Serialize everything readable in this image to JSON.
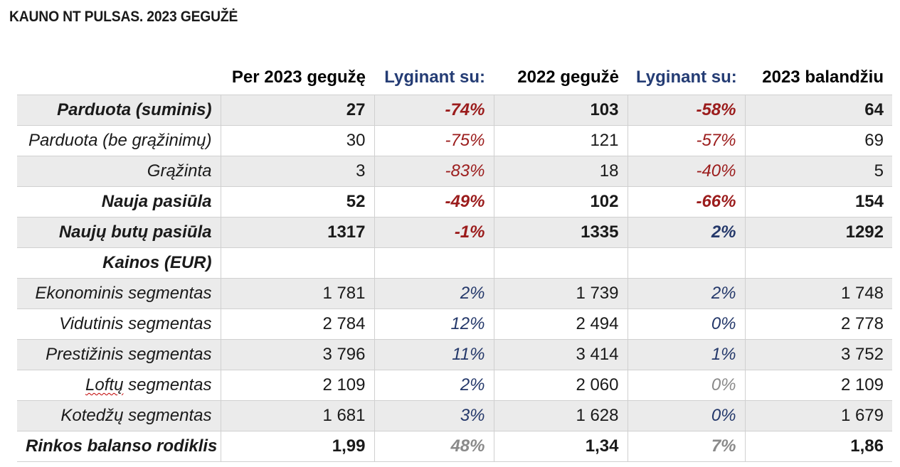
{
  "title": "KAUNO NT PULSAS. 2023 GEGUŽĖ",
  "header": {
    "label": "",
    "col1": "Per 2023 gegužę",
    "col2": "Lyginant su:",
    "col3": "2022 gegužė",
    "col4": "Lyginant su:",
    "col5": "2023 balandžiu"
  },
  "rows": [
    {
      "label": "Parduota (suminis)",
      "v1": "27",
      "p1": "-74%",
      "v2": "103",
      "p2": "-58%",
      "v3": "64"
    },
    {
      "label": "Parduota (be grąžinimų)",
      "v1": "30",
      "p1": "-75%",
      "v2": "121",
      "p2": "-57%",
      "v3": "69"
    },
    {
      "label": "Grąžinta",
      "v1": "3",
      "p1": "-83%",
      "v2": "18",
      "p2": "-40%",
      "v3": "5"
    },
    {
      "label": "Nauja pasiūla",
      "v1": "52",
      "p1": "-49%",
      "v2": "102",
      "p2": "-66%",
      "v3": "154"
    },
    {
      "label": "Naujų butų pasiūla",
      "v1": "1317",
      "p1": "-1%",
      "v2": "1335",
      "p2": "2%",
      "v3": "1292"
    },
    {
      "label": "Kainos (EUR)",
      "v1": "",
      "p1": "",
      "v2": "",
      "p2": "",
      "v3": ""
    },
    {
      "label": "Ekonominis segmentas",
      "v1": "1 781",
      "p1": "2%",
      "v2": "1 739",
      "p2": "2%",
      "v3": "1 748"
    },
    {
      "label": "Vidutinis segmentas",
      "v1": "2 784",
      "p1": "12%",
      "v2": "2 494",
      "p2": "0%",
      "v3": "2 778"
    },
    {
      "label": "Prestižinis segmentas",
      "v1": "3 796",
      "p1": "11%",
      "v2": "3 414",
      "p2": "1%",
      "v3": "3 752"
    },
    {
      "label_part1": "Loftų",
      "label_part2": " segmentas",
      "v1": "2 109",
      "p1": "2%",
      "v2": "2 060",
      "p2": "0%",
      "v3": "2 109"
    },
    {
      "label": "Kotedžų segmentas",
      "v1": "1 681",
      "p1": "3%",
      "v2": "1 628",
      "p2": "0%",
      "v3": "1 679"
    },
    {
      "label": "Rinkos balanso rodiklis",
      "v1": "1,99",
      "p1": "48%",
      "v2": "1,34",
      "p2": "7%",
      "v3": "1,86"
    }
  ],
  "colors": {
    "negative": "#9b1c1c",
    "positive": "#24386a",
    "muted": "#8a8a8a",
    "shade": "#ebebeb",
    "header_compare": "#243c74"
  }
}
